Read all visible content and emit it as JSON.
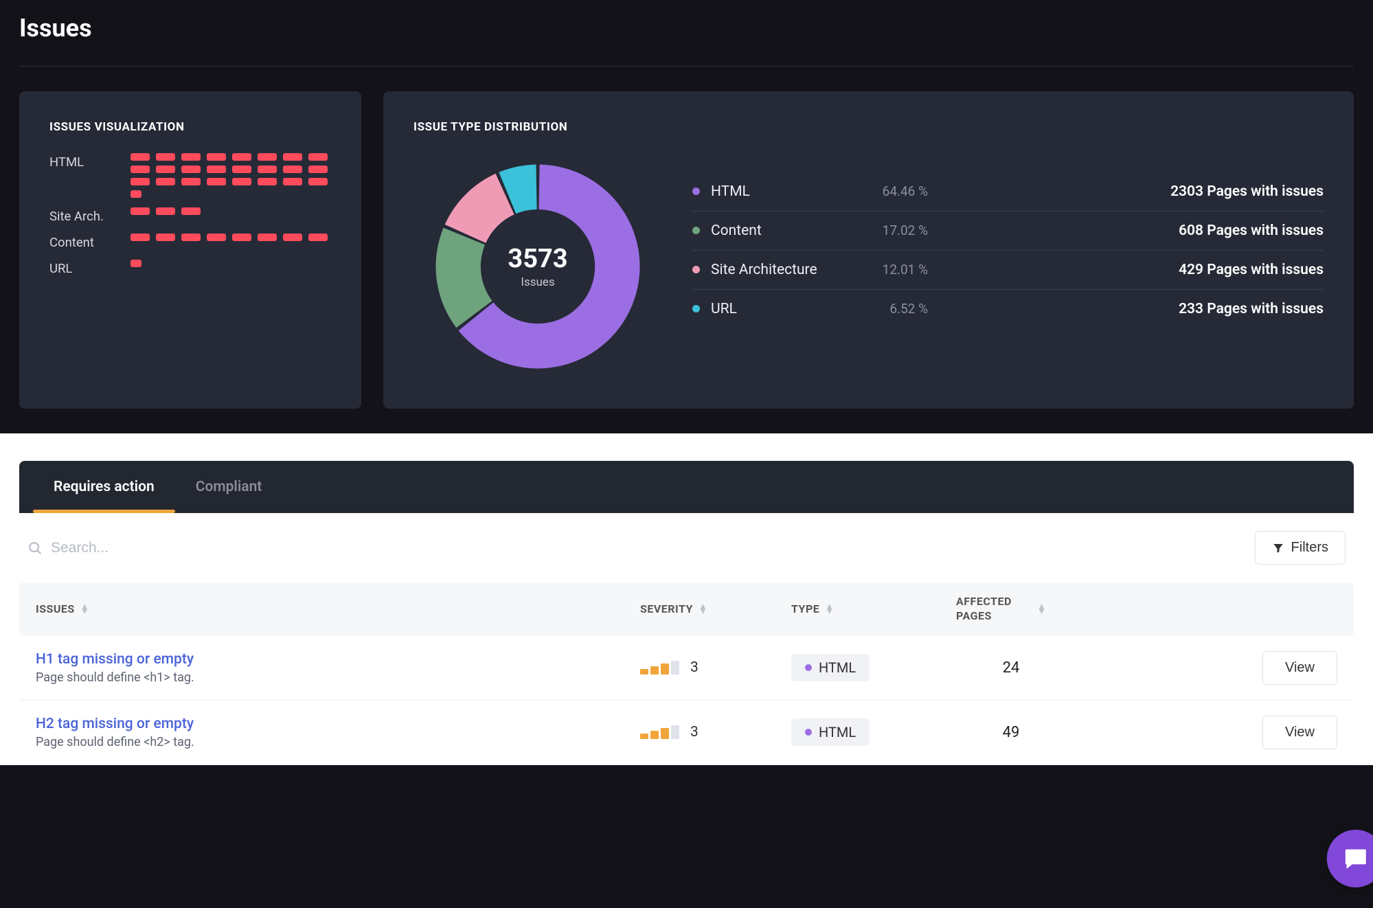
{
  "page": {
    "title": "Issues"
  },
  "colors": {
    "block_color": "#ff4b5c",
    "tab_active_underline": "#f0a43a",
    "fab": "#8047d8"
  },
  "visualization": {
    "title": "ISSUES VISUALIZATION",
    "rows": [
      {
        "label": "HTML",
        "blocks": [
          1,
          1,
          1,
          1,
          1,
          1,
          1,
          1,
          1,
          1,
          1,
          1,
          1,
          1,
          1,
          1,
          1,
          1,
          1,
          1,
          1,
          1,
          1,
          1,
          0.5
        ]
      },
      {
        "label": "Site Arch.",
        "blocks": [
          1,
          1,
          1
        ]
      },
      {
        "label": "Content",
        "blocks": [
          1,
          1,
          1,
          1,
          1,
          1,
          1,
          1
        ]
      },
      {
        "label": "URL",
        "blocks": [
          0.6
        ]
      }
    ]
  },
  "distribution": {
    "title": "ISSUE TYPE DISTRIBUTION",
    "donut": {
      "type": "donut",
      "total_value": "3573",
      "total_label": "Issues",
      "inner_radius_ratio": 0.56,
      "gap_degrees": 2,
      "background": "#262a37",
      "slices": [
        {
          "label": "HTML",
          "percent": 64.46,
          "color": "#9b6ee3",
          "pages": "2303 Pages with issues"
        },
        {
          "label": "Content",
          "percent": 17.02,
          "color": "#6fa37e",
          "pages": "608 Pages with issues"
        },
        {
          "label": "Site Architecture",
          "percent": 12.01,
          "color": "#f09bb5",
          "pages": "429 Pages with issues"
        },
        {
          "label": "URL",
          "percent": 6.52,
          "color": "#3bc1d9",
          "pages": "233 Pages with issues"
        }
      ],
      "legend_dot_colors": [
        "#9b6ee3",
        "#6fa37e",
        "#f09bb5",
        "#3bc1d9"
      ]
    }
  },
  "tabs": {
    "requires_action": "Requires action",
    "compliant": "Compliant",
    "active": "requires_action"
  },
  "search": {
    "placeholder": "Search..."
  },
  "filters": {
    "label": "Filters"
  },
  "table": {
    "columns": {
      "issues": "ISSUES",
      "severity": "SEVERITY",
      "type": "TYPE",
      "affected": "AFFECTED PAGES"
    },
    "severity_bars": {
      "colors_active": "#f0a43a",
      "colors_inactive": "#dfe2e8",
      "total": 4,
      "heights": [
        8,
        12,
        16,
        20
      ]
    },
    "rows": [
      {
        "title": "H1 tag missing or empty",
        "desc": "Page should define <h1> tag.",
        "severity": 3,
        "type": "HTML",
        "type_color": "#9b6ee3",
        "affected": 24,
        "action": "View"
      },
      {
        "title": "H2 tag missing or empty",
        "desc": "Page should define <h2> tag.",
        "severity": 3,
        "type": "HTML",
        "type_color": "#9b6ee3",
        "affected": 49,
        "action": "View"
      }
    ]
  }
}
